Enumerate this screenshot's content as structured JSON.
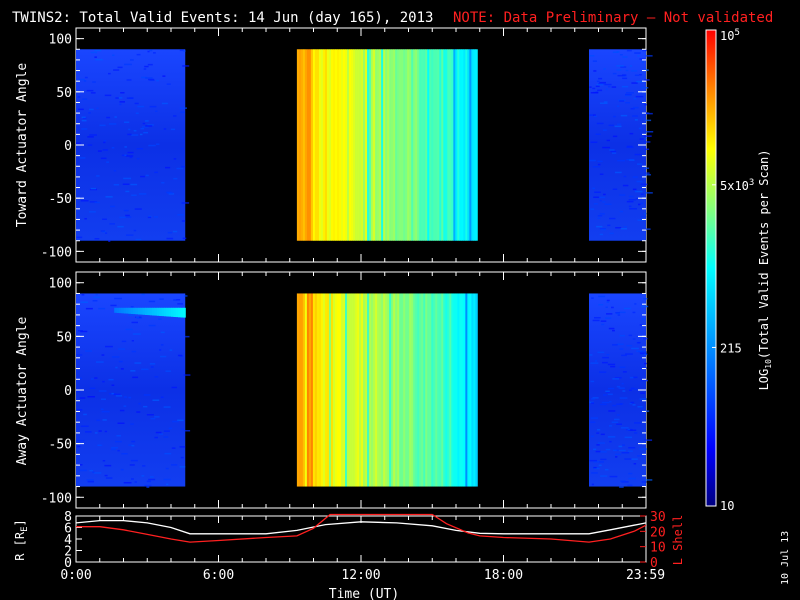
{
  "header": {
    "title": "TWINS2: Total Valid Events: 14 Jun (day 165), 2013",
    "note": "NOTE: Data Preliminary — Not validated",
    "note_color": "#ff2020"
  },
  "side_date": "10 Jul 13",
  "chart_data": [
    {
      "type": "heatmap",
      "panel": "top",
      "xlabel": "",
      "ylabel": "Toward Actuator Angle",
      "ylim": [
        -90,
        90
      ],
      "y_axis_range": [
        -110,
        110
      ],
      "yticks": [
        100,
        50,
        0,
        -50,
        -100
      ],
      "xlim_hours": [
        0,
        24
      ],
      "data_segments_hours": [
        [
          0,
          4.6
        ],
        [
          9.3,
          16.9
        ],
        [
          21.6,
          24
        ]
      ],
      "description_levels": "low (~10-215) in early and late segments, high (~5x10^3-10^4) in midday segment"
    },
    {
      "type": "heatmap",
      "panel": "middle",
      "xlabel": "",
      "ylabel": "Away Actuator Angle",
      "ylim": [
        -90,
        90
      ],
      "y_axis_range": [
        -110,
        110
      ],
      "yticks": [
        100,
        50,
        0,
        -50,
        -100
      ],
      "xlim_hours": [
        0,
        24
      ],
      "data_segments_hours": [
        [
          0,
          4.6
        ],
        [
          9.3,
          16.9
        ],
        [
          21.6,
          24
        ]
      ]
    },
    {
      "type": "line",
      "panel": "bottom",
      "xlabel": "Time (UT)",
      "ylabel_left": "R [R",
      "ylabel_left_sub": "E",
      "ylabel_left_close": "]",
      "ylabel_right": "L Shell",
      "ylim_left": [
        0,
        8
      ],
      "ylim_right": [
        0,
        30
      ],
      "yticks_left": [
        8,
        6,
        4,
        2,
        0
      ],
      "yticks_right": [
        30,
        20,
        10,
        0
      ],
      "xtick_labels": [
        "0:00",
        "6:00",
        "12:00",
        "18:00",
        "23:59"
      ],
      "xtick_hours": [
        0,
        6,
        12,
        18,
        23.98
      ],
      "series": [
        {
          "axis": "left",
          "color": "#ffffff",
          "x": [
            0,
            1,
            2,
            3,
            4,
            4.8,
            6,
            8,
            9.3,
            10.5,
            12,
            13.5,
            15,
            16,
            17,
            18,
            20,
            21.6,
            22.5,
            23.5,
            24
          ],
          "y": [
            6.8,
            7.2,
            7.2,
            6.8,
            6.0,
            4.9,
            4.9,
            4.9,
            5.5,
            6.5,
            7.0,
            6.8,
            6.3,
            5.5,
            5.0,
            4.9,
            4.9,
            4.9,
            5.6,
            6.4,
            6.8
          ]
        },
        {
          "axis": "right",
          "color": "#ff2020",
          "x": [
            0,
            1,
            2,
            3,
            4,
            4.8,
            6,
            8,
            9.3,
            10,
            10.7,
            15,
            15.6,
            16.5,
            17,
            18,
            20,
            21.6,
            22.5,
            23.5,
            24
          ],
          "y": [
            23,
            23,
            21,
            18,
            15,
            13,
            14,
            16,
            17,
            22,
            31,
            31,
            25,
            19,
            17,
            16,
            15,
            13,
            15,
            20,
            24
          ]
        }
      ]
    }
  ],
  "colorbar": {
    "label": "LOG10(Total Valid Events per Scan)",
    "label_main": "LOG",
    "label_sub": "10",
    "label_rest": "(Total Valid Events per Scan)",
    "scale": "log",
    "range": [
      10,
      100000
    ],
    "ticks": [
      {
        "base": "10",
        "exp": "5",
        "value": 100000
      },
      {
        "base": "5x10",
        "exp": "3",
        "value": 5000
      },
      {
        "base": "215",
        "exp": "",
        "value": 215
      },
      {
        "base": "10",
        "exp": "",
        "value": 10
      }
    ]
  }
}
